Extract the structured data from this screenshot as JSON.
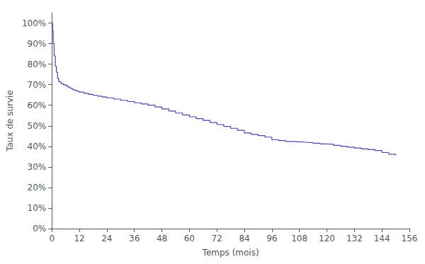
{
  "chart_data": {
    "type": "step",
    "xlabel": "Temps (mois)",
    "ylabel": "Taux de survie",
    "color": "#4444aa",
    "grid": false,
    "xlim": [
      0,
      156
    ],
    "ylim": [
      0,
      1.05
    ],
    "xticks": [
      0,
      12,
      24,
      36,
      48,
      60,
      72,
      84,
      96,
      108,
      120,
      132,
      144,
      156
    ],
    "yticks": [
      {
        "value": 0.0,
        "label": "0%"
      },
      {
        "value": 0.1,
        "label": "10%"
      },
      {
        "value": 0.2,
        "label": "20%"
      },
      {
        "value": 0.3,
        "label": "30%"
      },
      {
        "value": 0.4,
        "label": "40%"
      },
      {
        "value": 0.5,
        "label": "50%"
      },
      {
        "value": 0.6,
        "label": "60%"
      },
      {
        "value": 0.7,
        "label": "70%"
      },
      {
        "value": 0.8,
        "label": "80%"
      },
      {
        "value": 0.9,
        "label": "90%"
      },
      {
        "value": 1.0,
        "label": "100%"
      }
    ],
    "x": [
      0,
      0.3,
      0.6,
      1.0,
      1.5,
      2.0,
      2.5,
      3.0,
      4.0,
      5.0,
      6.0,
      7.0,
      8.0,
      9.0,
      10.0,
      11.0,
      12.0,
      14.0,
      16.0,
      18.0,
      20.0,
      22.0,
      24.0,
      27.0,
      30.0,
      33.0,
      36.0,
      39.0,
      42.0,
      45.0,
      48.0,
      51.0,
      54.0,
      57.0,
      60.0,
      63.0,
      66.0,
      69.0,
      72.0,
      75.0,
      78.0,
      81.0,
      84.0,
      87.0,
      90.0,
      93.0,
      96.0,
      99.0,
      102.0,
      105.0,
      108.0,
      111.0,
      114.0,
      117.0,
      120.0,
      123.0,
      126.0,
      129.0,
      132.0,
      135.0,
      138.0,
      141.0,
      144.0,
      147.0,
      150.0
    ],
    "values": [
      1.0,
      0.96,
      0.9,
      0.84,
      0.79,
      0.76,
      0.73,
      0.715,
      0.705,
      0.7,
      0.695,
      0.688,
      0.682,
      0.676,
      0.672,
      0.668,
      0.664,
      0.658,
      0.653,
      0.648,
      0.644,
      0.64,
      0.636,
      0.63,
      0.624,
      0.618,
      0.612,
      0.606,
      0.6,
      0.592,
      0.582,
      0.572,
      0.562,
      0.553,
      0.544,
      0.535,
      0.526,
      0.516,
      0.506,
      0.497,
      0.488,
      0.478,
      0.465,
      0.458,
      0.452,
      0.445,
      0.432,
      0.428,
      0.424,
      0.422,
      0.42,
      0.418,
      0.415,
      0.412,
      0.41,
      0.405,
      0.4,
      0.396,
      0.392,
      0.388,
      0.384,
      0.38,
      0.37,
      0.362,
      0.356
    ]
  }
}
